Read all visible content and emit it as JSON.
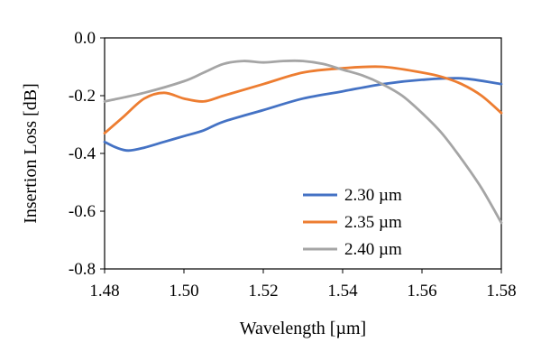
{
  "chart_data": {
    "type": "line",
    "title": "",
    "xlabel": "Wavelength [µm]",
    "ylabel": "Insertion Loss [dB]",
    "xlim": [
      1.48,
      1.58
    ],
    "ylim": [
      -0.8,
      0.0
    ],
    "xticks": [
      "1.48",
      "1.50",
      "1.52",
      "1.54",
      "1.56",
      "1.58"
    ],
    "yticks": [
      "0.0",
      "-0.2",
      "-0.4",
      "-0.6",
      "-0.8"
    ],
    "grid": false,
    "legend_position": "bottom-right",
    "series": [
      {
        "name": "2.30 µm",
        "color": "#4472C4",
        "x": [
          1.48,
          1.483,
          1.486,
          1.49,
          1.495,
          1.5,
          1.505,
          1.51,
          1.52,
          1.53,
          1.54,
          1.55,
          1.56,
          1.57,
          1.58
        ],
        "y": [
          -0.36,
          -0.38,
          -0.39,
          -0.38,
          -0.36,
          -0.34,
          -0.32,
          -0.29,
          -0.25,
          -0.21,
          -0.185,
          -0.16,
          -0.145,
          -0.14,
          -0.16
        ]
      },
      {
        "name": "2.35 µm",
        "color": "#ED7D31",
        "x": [
          1.48,
          1.485,
          1.49,
          1.495,
          1.5,
          1.505,
          1.51,
          1.52,
          1.53,
          1.54,
          1.55,
          1.56,
          1.565,
          1.57,
          1.575,
          1.58
        ],
        "y": [
          -0.33,
          -0.27,
          -0.21,
          -0.19,
          -0.21,
          -0.22,
          -0.2,
          -0.16,
          -0.12,
          -0.105,
          -0.1,
          -0.12,
          -0.135,
          -0.16,
          -0.2,
          -0.26
        ]
      },
      {
        "name": "2.40 µm",
        "color": "#A5A5A5",
        "x": [
          1.48,
          1.49,
          1.5,
          1.505,
          1.51,
          1.515,
          1.52,
          1.525,
          1.53,
          1.535,
          1.54,
          1.545,
          1.55,
          1.555,
          1.56,
          1.565,
          1.57,
          1.575,
          1.58
        ],
        "y": [
          -0.22,
          -0.19,
          -0.15,
          -0.12,
          -0.09,
          -0.08,
          -0.085,
          -0.08,
          -0.08,
          -0.09,
          -0.11,
          -0.13,
          -0.16,
          -0.2,
          -0.26,
          -0.33,
          -0.42,
          -0.52,
          -0.64
        ]
      }
    ]
  }
}
